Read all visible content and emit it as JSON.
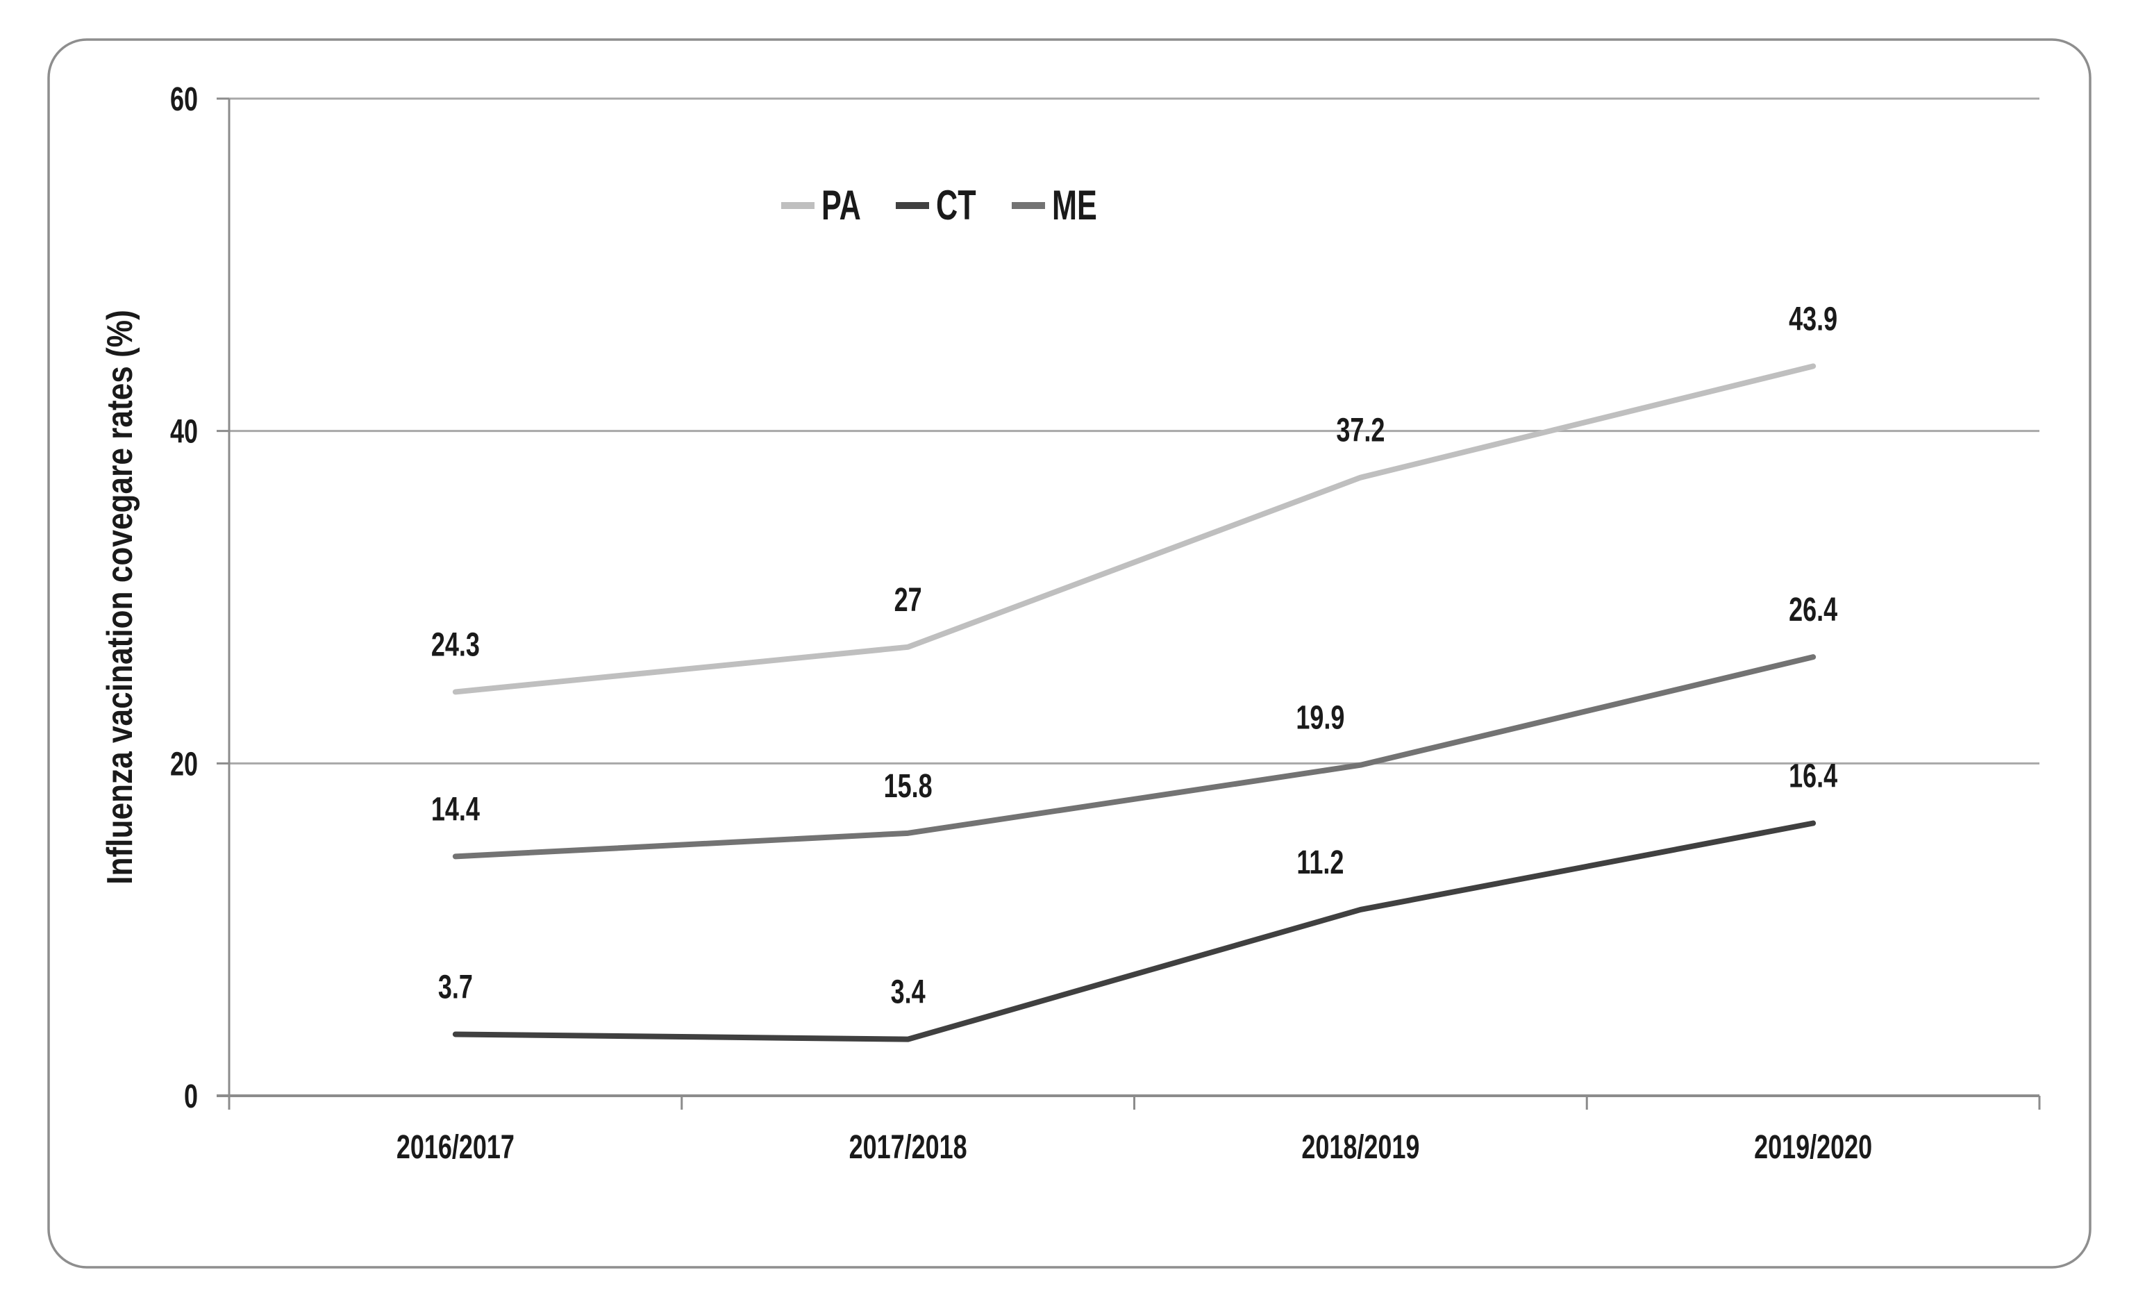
{
  "chart_data": {
    "type": "line",
    "title": "",
    "xlabel": "",
    "ylabel": "Influenza vacination covegare rates (%)",
    "categories": [
      "2016/2017",
      "2017/2018",
      "2018/2019",
      "2019/2020"
    ],
    "series": [
      {
        "name": "PA",
        "color": "#bfbfbf",
        "values": [
          24.3,
          27,
          37.2,
          43.9
        ],
        "labels": [
          "24.3",
          "27",
          "37.2",
          "43.9"
        ],
        "label_dx": [
          0,
          0,
          0,
          0
        ]
      },
      {
        "name": "CT",
        "color": "#404040",
        "values": [
          3.7,
          3.4,
          11.2,
          16.4
        ],
        "labels": [
          "3.7",
          "3.4",
          "11.2",
          "16.4"
        ],
        "label_dx": [
          0,
          0,
          -58,
          0
        ]
      },
      {
        "name": "ME",
        "color": "#737373",
        "values": [
          14.4,
          15.8,
          19.9,
          26.4
        ],
        "labels": [
          "14.4",
          "15.8",
          "19.9",
          "26.4"
        ],
        "label_dx": [
          0,
          0,
          -58,
          0
        ]
      }
    ],
    "y_axis": {
      "min": 0,
      "max": 60,
      "ticks": [
        0,
        20,
        40,
        60
      ]
    },
    "legend": {
      "position": "top-center",
      "entries": [
        "PA",
        "CT",
        "ME"
      ]
    },
    "grid": true,
    "colors": {
      "gridline": "#a8a8a8",
      "axis": "#8c8c8c",
      "panel_border": "#8e8e8e",
      "label_text": "#1a1a1a"
    }
  }
}
